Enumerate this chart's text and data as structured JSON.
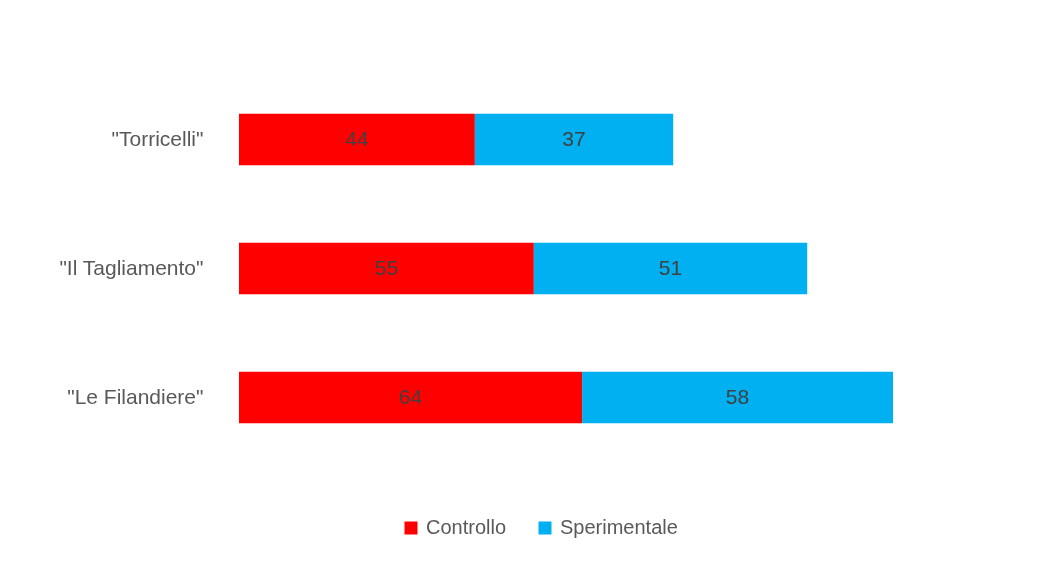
{
  "chart_data": {
    "type": "bar",
    "orientation": "horizontal",
    "stacked": true,
    "data_labels": true,
    "legend": "bottom",
    "tick_labels": "y",
    "categories": [
      "\"Torricelli\"",
      "\"Il Tagliamento\"",
      "\"Le Filandiere\""
    ],
    "series": [
      {
        "name": "Controllo",
        "color": "#ff0000",
        "values": [
          44,
          55,
          64
        ]
      },
      {
        "name": "Sperimentale",
        "color": "#00b0f0",
        "values": [
          37,
          51,
          58
        ]
      }
    ]
  }
}
